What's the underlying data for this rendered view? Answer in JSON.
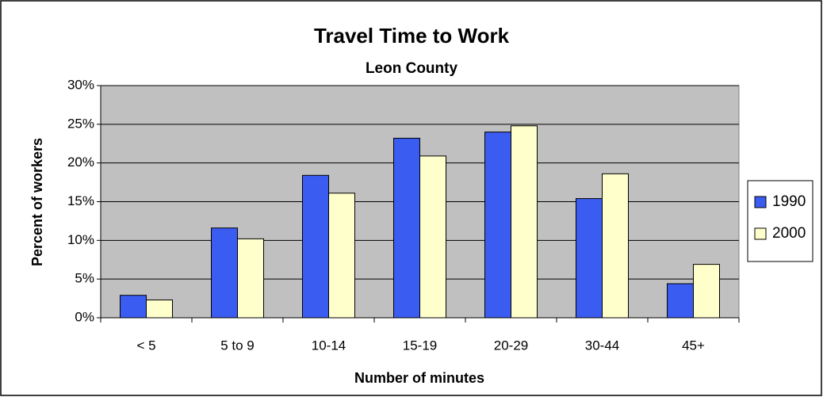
{
  "chart_data": {
    "type": "bar",
    "title": "Travel Time to Work",
    "subtitle": "Leon County",
    "x_label": "Number of minutes",
    "y_label": "Percent of workers",
    "categories": [
      "< 5",
      "5 to 9",
      "10-14",
      "15-19",
      "20-29",
      "30-44",
      "45+"
    ],
    "series": [
      {
        "name": "1990",
        "color": "#3a5cf0",
        "values": [
          2.9,
          11.6,
          18.4,
          23.2,
          24.0,
          15.4,
          4.4
        ]
      },
      {
        "name": "2000",
        "color": "#ffffcc",
        "values": [
          2.3,
          10.2,
          16.1,
          20.9,
          24.8,
          18.6,
          6.9
        ]
      }
    ],
    "ylim": [
      0,
      30
    ],
    "yticks": [
      {
        "value": 0,
        "label": "0%"
      },
      {
        "value": 5,
        "label": "5%"
      },
      {
        "value": 10,
        "label": "10%"
      },
      {
        "value": 15,
        "label": "15%"
      },
      {
        "value": 20,
        "label": "20%"
      },
      {
        "value": 25,
        "label": "25%"
      },
      {
        "value": 30,
        "label": "30%"
      }
    ],
    "grid": true,
    "legend": "right"
  }
}
